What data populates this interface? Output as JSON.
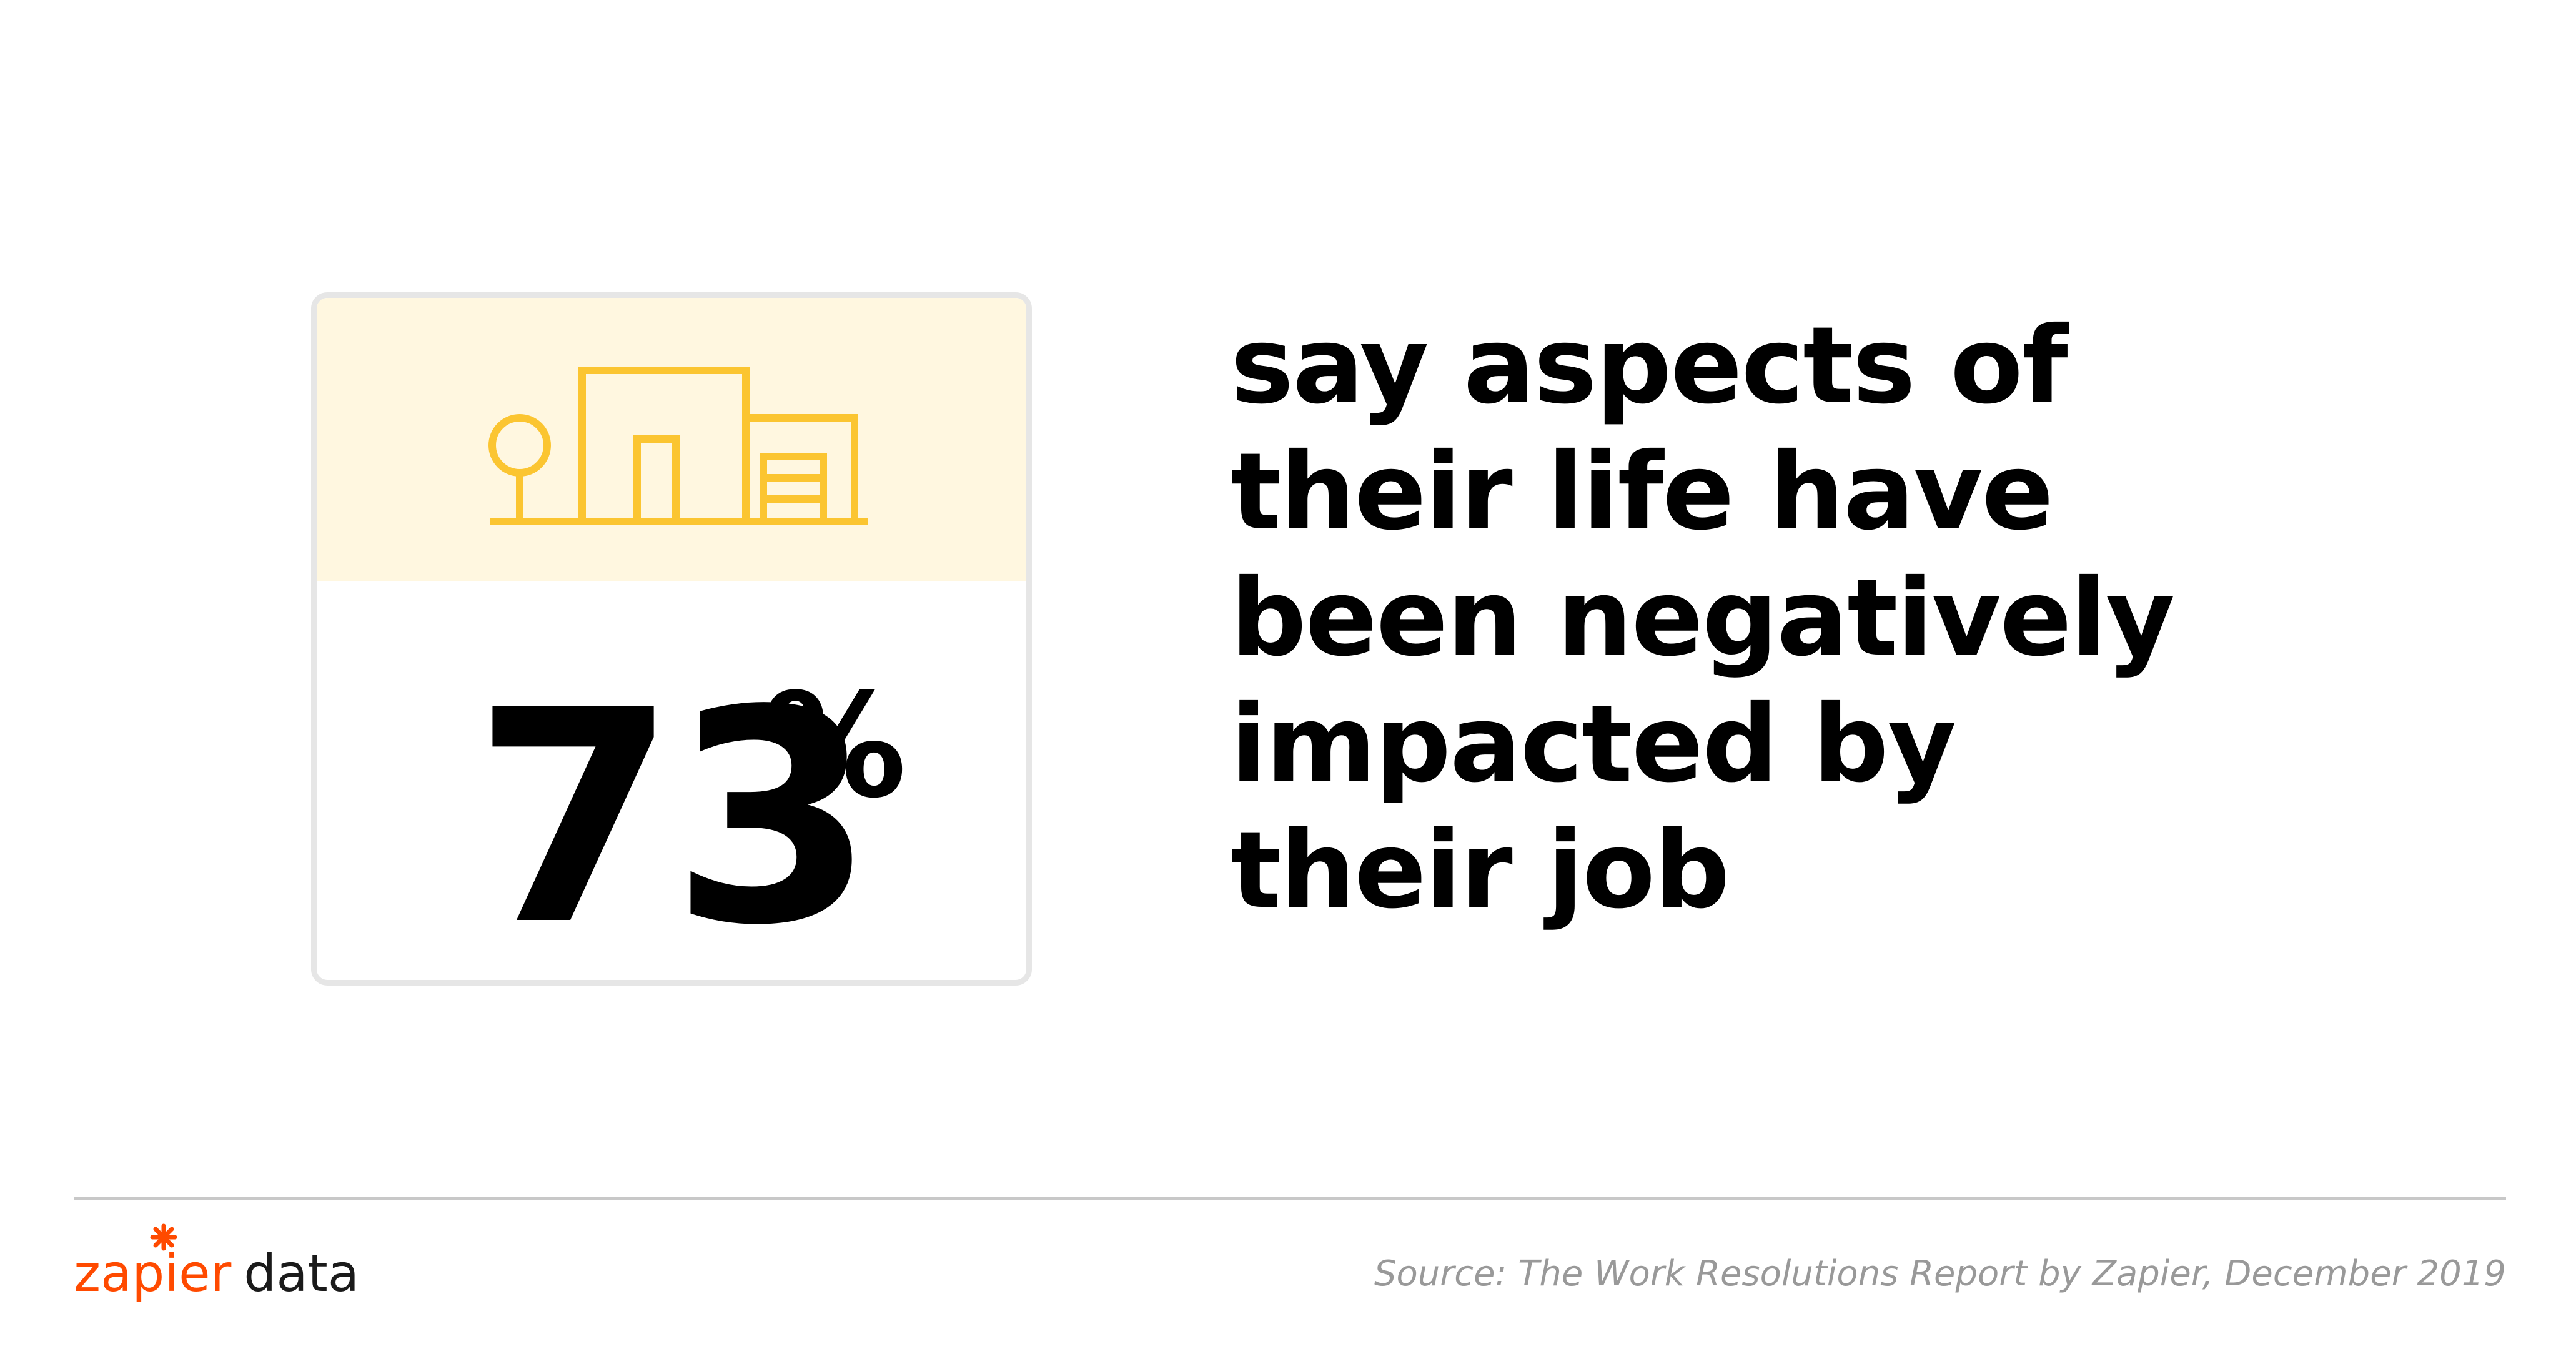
{
  "stat": {
    "value": "73",
    "unit": "%",
    "icon": "house-icon",
    "accent_color": "#fbc531",
    "header_bg": "#fff7e0"
  },
  "statement": {
    "lines": [
      "say aspects of",
      "their life have",
      "been negatively",
      "impacted by",
      "their job"
    ]
  },
  "footer": {
    "brand_primary": "zapier",
    "brand_secondary": "data",
    "brand_color": "#ff4a00",
    "source": "Source: The Work Resolutions Report by Zapier, December 2019"
  }
}
